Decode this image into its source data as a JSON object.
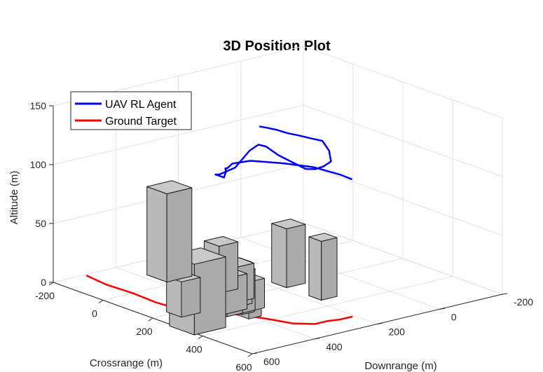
{
  "chart_data": {
    "type": "line",
    "title": "3D Position Plot",
    "xlabel": "Downrange (m)",
    "ylabel": "Crossrange (m)",
    "zlabel": "Altitude (m)",
    "x_ticks": [
      "-200",
      "0",
      "200",
      "400",
      "600"
    ],
    "y_ticks": [
      "-200",
      "0",
      "200",
      "400",
      "600"
    ],
    "z_ticks": [
      "0",
      "50",
      "100",
      "150"
    ],
    "xlim": [
      -200,
      600
    ],
    "ylim": [
      -200,
      600
    ],
    "zlim": [
      0,
      150
    ],
    "grid": true,
    "legend_position": "top-left",
    "colors": {
      "uav": "#0000ff",
      "target": "#ff0000",
      "building": "#b8b8b8"
    },
    "series": [
      {
        "name": "UAV RL Agent",
        "color": "#0000ff",
        "points": [
          [
            -85,
            30,
            105
          ],
          [
            -60,
            30,
            106
          ],
          [
            -20,
            28,
            107
          ],
          [
            20,
            25,
            107
          ],
          [
            60,
            22,
            108
          ],
          [
            110,
            20,
            109
          ],
          [
            150,
            18,
            110
          ],
          [
            180,
            20,
            104
          ],
          [
            200,
            30,
            97
          ],
          [
            230,
            60,
            100
          ],
          [
            245,
            90,
            100
          ],
          [
            250,
            120,
            100
          ],
          [
            250,
            150,
            102
          ],
          [
            245,
            190,
            110
          ],
          [
            240,
            230,
            118
          ],
          [
            240,
            270,
            128
          ],
          [
            248,
            300,
            132
          ],
          [
            250,
            330,
            129
          ],
          [
            230,
            360,
            115
          ],
          [
            180,
            370,
            106
          ],
          [
            150,
            360,
            103
          ],
          [
            160,
            340,
            100
          ],
          [
            155,
            330,
            104
          ],
          [
            140,
            320,
            105
          ],
          [
            120,
            300,
            102
          ],
          [
            100,
            280,
            100
          ],
          [
            80,
            250,
            100
          ],
          [
            90,
            200,
            100
          ],
          [
            160,
            150,
            100
          ],
          [
            220,
            100,
            98
          ],
          [
            290,
            70,
            95
          ],
          [
            320,
            60,
            93
          ]
        ]
      },
      {
        "name": "Ground Target",
        "color": "#ff0000",
        "points": [
          [
            -190,
            500,
            0
          ],
          [
            -100,
            510,
            0
          ],
          [
            0,
            505,
            0
          ],
          [
            100,
            510,
            0
          ],
          [
            200,
            500,
            0
          ],
          [
            260,
            470,
            0
          ],
          [
            290,
            440,
            0
          ],
          [
            310,
            420,
            0
          ],
          [
            350,
            400,
            0
          ],
          [
            400,
            380,
            0
          ],
          [
            460,
            360,
            0
          ],
          [
            500,
            320,
            0
          ],
          [
            500,
            280,
            0
          ],
          [
            510,
            250,
            0
          ],
          [
            510,
            210,
            0
          ]
        ]
      }
    ],
    "buildings": [
      {
        "x": 150,
        "y": 120,
        "dx": 60,
        "dy": 60,
        "h": 50
      },
      {
        "x": 300,
        "y": 130,
        "dx": 50,
        "dy": 50,
        "h": 50
      },
      {
        "x": -100,
        "y": 300,
        "dx": 80,
        "dy": 80,
        "h": 75
      },
      {
        "x": 280,
        "y": 510,
        "dx": 100,
        "dy": 100,
        "h": 60
      },
      {
        "x": 80,
        "y": 280,
        "dx": 60,
        "dy": 60,
        "h": 40
      },
      {
        "x": 250,
        "y": 330,
        "dx": 60,
        "dy": 60,
        "h": 25
      },
      {
        "x": 170,
        "y": 300,
        "dx": 60,
        "dy": 60,
        "h": 30
      },
      {
        "x": 210,
        "y": 330,
        "dx": 50,
        "dy": 50,
        "h": 35
      },
      {
        "x": 220,
        "y": 370,
        "dx": 70,
        "dy": 70,
        "h": 30
      },
      {
        "x": 250,
        "y": 360,
        "dx": 60,
        "dy": 60,
        "h": 35
      },
      {
        "x": 260,
        "y": 400,
        "dx": 50,
        "dy": 50,
        "h": 25
      },
      {
        "x": 280,
        "y": 370,
        "dx": 40,
        "dy": 40,
        "h": 25
      },
      {
        "x": 320,
        "y": 380,
        "dx": 40,
        "dy": 40,
        "h": 25
      },
      {
        "x": 180,
        "y": 480,
        "dx": 60,
        "dy": 60,
        "h": 30
      }
    ]
  }
}
